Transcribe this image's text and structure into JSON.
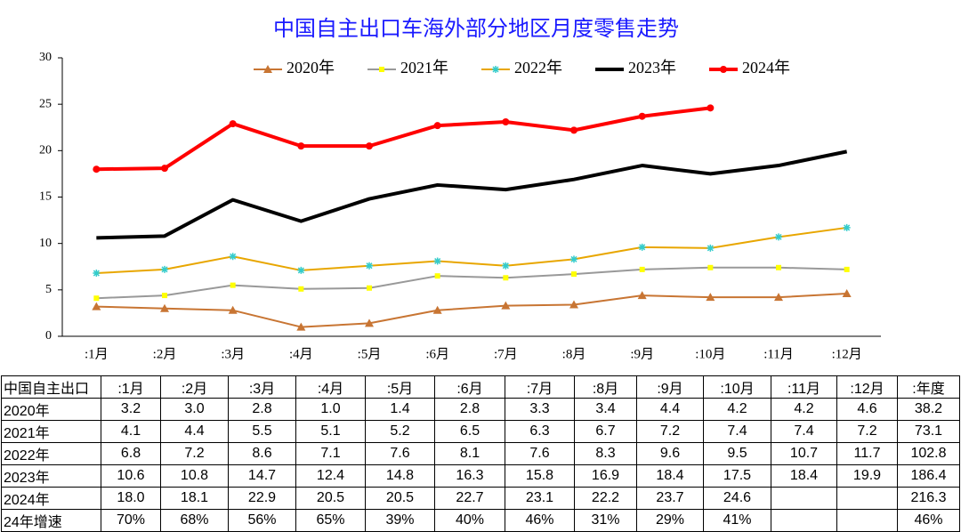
{
  "chart_data": {
    "type": "line",
    "title": "中国自主出口车海外部分地区月度零售走势",
    "categories": [
      ":1月",
      ":2月",
      ":3月",
      ":4月",
      ":5月",
      ":6月",
      ":7月",
      ":8月",
      ":9月",
      ":10月",
      ":11月",
      ":12月"
    ],
    "series": [
      {
        "name": "2020年",
        "color": "#c87533",
        "marker": "triangle",
        "marker_color": "#c87533",
        "line_width": 2,
        "values": [
          3.2,
          3.0,
          2.8,
          1.0,
          1.4,
          2.8,
          3.3,
          3.4,
          4.4,
          4.2,
          4.2,
          4.6
        ]
      },
      {
        "name": "2021年",
        "color": "#999999",
        "marker": "square",
        "marker_color": "#ffff00",
        "line_width": 2,
        "values": [
          4.1,
          4.4,
          5.5,
          5.1,
          5.2,
          6.5,
          6.3,
          6.7,
          7.2,
          7.4,
          7.4,
          7.2
        ]
      },
      {
        "name": "2022年",
        "color": "#e8a600",
        "marker": "star",
        "marker_color": "#33cccc",
        "line_width": 2,
        "values": [
          6.8,
          7.2,
          8.6,
          7.1,
          7.6,
          8.1,
          7.6,
          8.3,
          9.6,
          9.5,
          10.7,
          11.7
        ]
      },
      {
        "name": "2023年",
        "color": "#000000",
        "marker": "none",
        "marker_color": "#000000",
        "line_width": 4,
        "values": [
          10.6,
          10.8,
          14.7,
          12.4,
          14.8,
          16.3,
          15.8,
          16.9,
          18.4,
          17.5,
          18.4,
          19.9
        ]
      },
      {
        "name": "2024年",
        "color": "#ff0000",
        "marker": "circle",
        "marker_color": "#ff0000",
        "line_width": 4,
        "values": [
          18.0,
          18.1,
          22.9,
          20.5,
          20.5,
          22.7,
          23.1,
          22.2,
          23.7,
          24.6,
          null,
          null
        ]
      }
    ],
    "ylim": [
      0,
      30
    ],
    "yticks": [
      0,
      5,
      10,
      15,
      20,
      25,
      30
    ],
    "grid": false,
    "legend": "top"
  },
  "table": {
    "header": [
      "中国自主出口",
      ":1月",
      ":2月",
      ":3月",
      ":4月",
      ":5月",
      ":6月",
      ":7月",
      ":8月",
      ":9月",
      ":10月",
      ":11月",
      ":12月",
      ":年度"
    ],
    "rows": [
      [
        "2020年",
        "3.2",
        "3.0",
        "2.8",
        "1.0",
        "1.4",
        "2.8",
        "3.3",
        "3.4",
        "4.4",
        "4.2",
        "4.2",
        "4.6",
        "38.2"
      ],
      [
        "2021年",
        "4.1",
        "4.4",
        "5.5",
        "5.1",
        "5.2",
        "6.5",
        "6.3",
        "6.7",
        "7.2",
        "7.4",
        "7.4",
        "7.2",
        "73.1"
      ],
      [
        "2022年",
        "6.8",
        "7.2",
        "8.6",
        "7.1",
        "7.6",
        "8.1",
        "7.6",
        "8.3",
        "9.6",
        "9.5",
        "10.7",
        "11.7",
        "102.8"
      ],
      [
        "2023年",
        "10.6",
        "10.8",
        "14.7",
        "12.4",
        "14.8",
        "16.3",
        "15.8",
        "16.9",
        "18.4",
        "17.5",
        "18.4",
        "19.9",
        "186.4"
      ],
      [
        "2024年",
        "18.0",
        "18.1",
        "22.9",
        "20.5",
        "20.5",
        "22.7",
        "23.1",
        "22.2",
        "23.7",
        "24.6",
        null,
        null,
        "216.3"
      ],
      [
        "24年增速",
        "70%",
        "68%",
        "56%",
        "65%",
        "39%",
        "40%",
        "46%",
        "31%",
        "29%",
        "41%",
        null,
        null,
        "46%"
      ]
    ]
  }
}
